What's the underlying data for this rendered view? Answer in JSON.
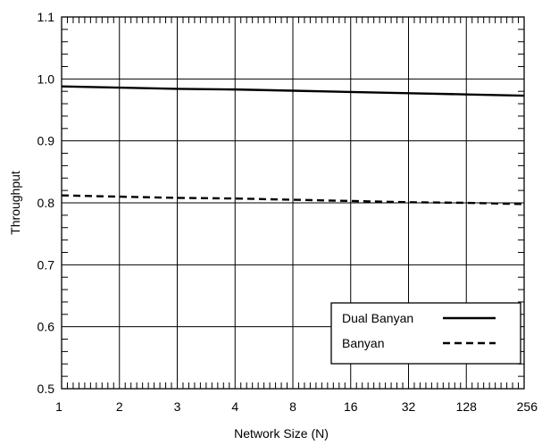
{
  "chart_data": {
    "type": "line",
    "categories": [
      "1",
      "2",
      "3",
      "4",
      "8",
      "16",
      "32",
      "128",
      "256"
    ],
    "xlabel": "Network Size (N)",
    "ylabel": "Throughput",
    "ylim": [
      0.5,
      1.1
    ],
    "yticks": [
      "0.5",
      "0.6",
      "0.7",
      "0.8",
      "0.9",
      "1.0",
      "1.1"
    ],
    "grid": true,
    "legend_position": "bottom-right",
    "series": [
      {
        "name": "Dual Banyan",
        "style": "solid",
        "color": "#000000",
        "values": [
          0.988,
          0.986,
          0.984,
          0.983,
          0.981,
          0.979,
          0.977,
          0.975,
          0.973
        ]
      },
      {
        "name": "Banyan",
        "style": "dashed",
        "color": "#000000",
        "values": [
          0.812,
          0.81,
          0.808,
          0.807,
          0.805,
          0.803,
          0.801,
          0.8,
          0.798
        ]
      }
    ]
  }
}
